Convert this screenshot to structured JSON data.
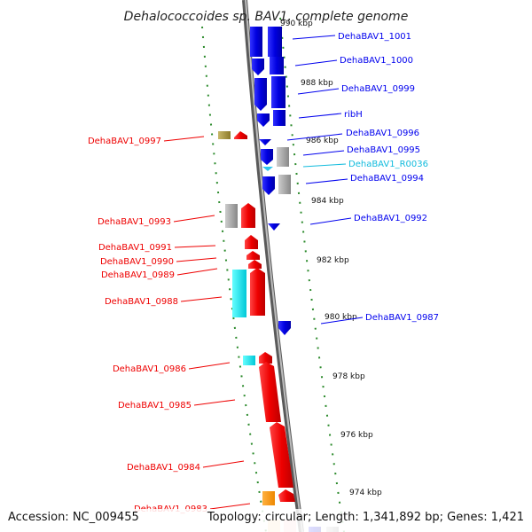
{
  "title": "Dehalococcoides sp. BAV1, complete genome",
  "accession_text": "Accession: NC_009455",
  "topology_text": "Topology: circular; Length: 1,341,892 bp; Genes: 1,421",
  "colors": {
    "forward": "#0000ee",
    "reverse": "#ee0000",
    "rna": "#11bbdd",
    "pseudo": "#888888",
    "tick": "#228822"
  },
  "scale_ticks": [
    {
      "label": "990 kbp"
    },
    {
      "label": "988 kbp"
    },
    {
      "label": "986 kbp"
    },
    {
      "label": "984 kbp"
    },
    {
      "label": "982 kbp"
    },
    {
      "label": "980 kbp"
    },
    {
      "label": "978 kbp"
    },
    {
      "label": "976 kbp"
    },
    {
      "label": "974 kbp"
    }
  ],
  "right_genes": [
    {
      "label": "DehaBAV1_1001",
      "color": "#0000ee"
    },
    {
      "label": "DehaBAV1_1000",
      "color": "#0000ee"
    },
    {
      "label": "DehaBAV1_0999",
      "color": "#0000ee"
    },
    {
      "label": "ribH",
      "color": "#0000ee"
    },
    {
      "label": "DehaBAV1_0996",
      "color": "#0000ee"
    },
    {
      "label": "DehaBAV1_0995",
      "color": "#0000ee"
    },
    {
      "label": "DehaBAV1_R0036",
      "color": "#11bbdd"
    },
    {
      "label": "DehaBAV1_0994",
      "color": "#0000ee"
    },
    {
      "label": "DehaBAV1_0992",
      "color": "#0000ee"
    },
    {
      "label": "DehaBAV1_0987",
      "color": "#0000ee"
    }
  ],
  "left_genes": [
    {
      "label": "DehaBAV1_0997",
      "color": "#ee0000"
    },
    {
      "label": "DehaBAV1_0993",
      "color": "#ee0000"
    },
    {
      "label": "DehaBAV1_0991",
      "color": "#ee0000"
    },
    {
      "label": "DehaBAV1_0990",
      "color": "#ee0000"
    },
    {
      "label": "DehaBAV1_0989",
      "color": "#ee0000"
    },
    {
      "label": "DehaBAV1_0988",
      "color": "#ee0000"
    },
    {
      "label": "DehaBAV1_0986",
      "color": "#ee0000"
    },
    {
      "label": "DehaBAV1_0985",
      "color": "#ee0000"
    },
    {
      "label": "DehaBAV1_0984",
      "color": "#ee0000"
    },
    {
      "label": "DehaBAV1_0983",
      "color": "#ee0000"
    }
  ]
}
